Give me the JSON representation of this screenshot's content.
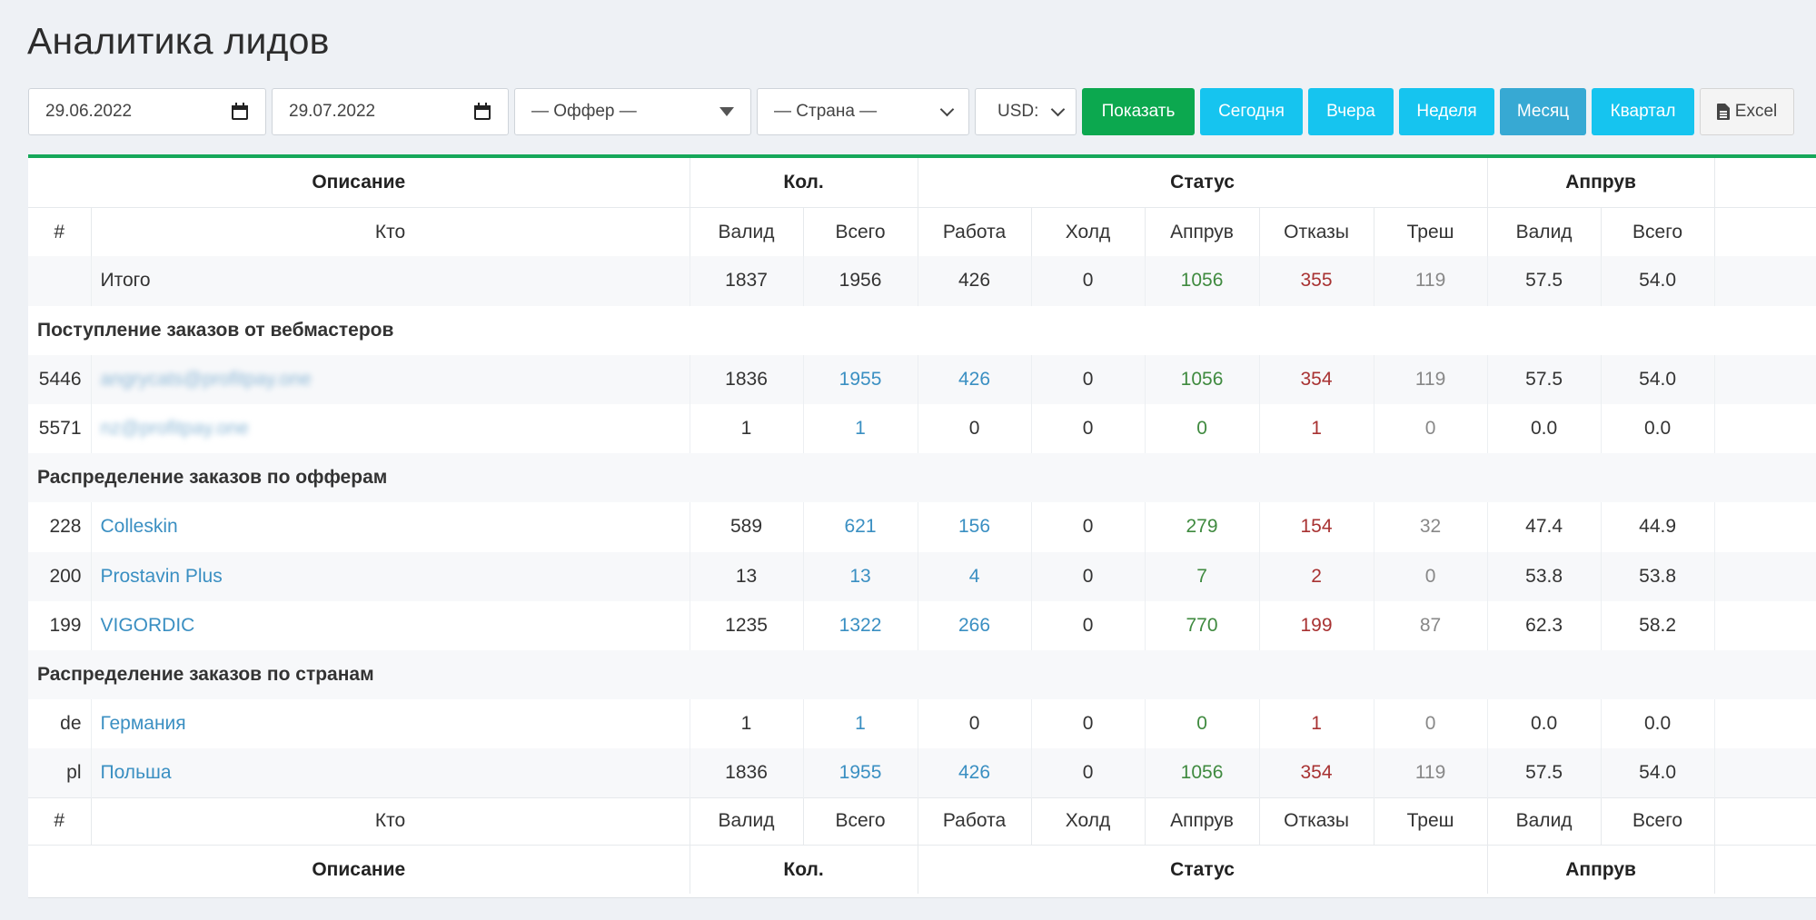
{
  "page": {
    "title": "Аналитика лидов"
  },
  "filters": {
    "date_from": "29.06.2022",
    "date_to": "29.07.2022",
    "offer": "— Оффер —",
    "country": "— Страна —",
    "currency": "USD:"
  },
  "buttons": {
    "show": "Показать",
    "today": "Сегодня",
    "yesterday": "Вчера",
    "week": "Неделя",
    "month": "Месяц",
    "quarter": "Квартал",
    "excel": "Excel"
  },
  "colors": {
    "accent_green": "#0ca84f",
    "button_cyan": "#16c4ef",
    "button_active": "#37a9d3",
    "link": "#3a8fc2",
    "approved": "#3f8a3f",
    "rejected": "#a83232"
  },
  "table": {
    "group_headers": [
      "Описание",
      "Кол.",
      "Статус",
      "Аппрув"
    ],
    "columns": [
      "#",
      "Кто",
      "Валид",
      "Всего",
      "Работа",
      "Холд",
      "Аппрув",
      "Отказы",
      "Треш",
      "Валид",
      "Всего"
    ],
    "total": {
      "id": "",
      "who": "Итого",
      "valid": "1837",
      "all": "1956",
      "work": "426",
      "hold": "0",
      "approve": "1056",
      "reject": "355",
      "trash": "119",
      "ap_valid": "57.5",
      "ap_all": "54.0"
    },
    "sections": {
      "webmasters": "Поступление заказов от вебмастеров",
      "offers": "Распределение заказов по офферам",
      "countries": "Распределение заказов по странам"
    },
    "webmasters": [
      {
        "id": "5446",
        "who": "angrycats@profitpay.one",
        "valid": "1836",
        "all": "1955",
        "work": "426",
        "hold": "0",
        "approve": "1056",
        "reject": "354",
        "trash": "119",
        "ap_valid": "57.5",
        "ap_all": "54.0"
      },
      {
        "id": "5571",
        "who": "nz@profitpay.one",
        "valid": "1",
        "all": "1",
        "work": "0",
        "hold": "0",
        "approve": "0",
        "reject": "1",
        "trash": "0",
        "ap_valid": "0.0",
        "ap_all": "0.0"
      }
    ],
    "offers": [
      {
        "id": "228",
        "who": "Colleskin",
        "valid": "589",
        "all": "621",
        "work": "156",
        "hold": "0",
        "approve": "279",
        "reject": "154",
        "trash": "32",
        "ap_valid": "47.4",
        "ap_all": "44.9"
      },
      {
        "id": "200",
        "who": "Prostavin Plus",
        "valid": "13",
        "all": "13",
        "work": "4",
        "hold": "0",
        "approve": "7",
        "reject": "2",
        "trash": "0",
        "ap_valid": "53.8",
        "ap_all": "53.8"
      },
      {
        "id": "199",
        "who": "VIGORDIC",
        "valid": "1235",
        "all": "1322",
        "work": "266",
        "hold": "0",
        "approve": "770",
        "reject": "199",
        "trash": "87",
        "ap_valid": "62.3",
        "ap_all": "58.2"
      }
    ],
    "countries": [
      {
        "id": "de",
        "who": "Германия",
        "valid": "1",
        "all": "1",
        "work": "0",
        "hold": "0",
        "approve": "0",
        "reject": "1",
        "trash": "0",
        "ap_valid": "0.0",
        "ap_all": "0.0"
      },
      {
        "id": "pl",
        "who": "Польша",
        "valid": "1836",
        "all": "1955",
        "work": "426",
        "hold": "0",
        "approve": "1056",
        "reject": "354",
        "trash": "119",
        "ap_valid": "57.5",
        "ap_all": "54.0"
      }
    ]
  }
}
